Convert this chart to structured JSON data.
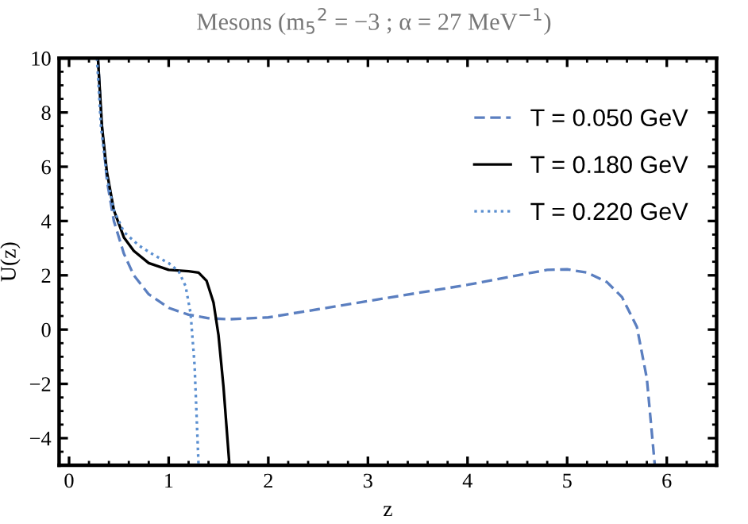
{
  "chart_data": {
    "type": "line",
    "title": "Mesons (m$_{5}$$^{2}$ = −3 ; α = 27 MeV$^{−1}$)",
    "xlabel": "z",
    "ylabel": "U(z)",
    "xlim": [
      -0.1,
      6.5
    ],
    "ylim": [
      -5,
      10
    ],
    "xticks": [
      0,
      1,
      2,
      3,
      4,
      5,
      6
    ],
    "yticks": [
      {
        "value": -4,
        "label": "−4"
      },
      {
        "value": -2,
        "label": "−2"
      },
      0,
      2,
      4,
      6,
      8,
      10
    ],
    "legend": "top right",
    "grid": false,
    "series": [
      {
        "name": "T = 0.050 GeV",
        "color": "#5b7fc0",
        "line_style": "dashed",
        "x": [
          0.29,
          0.33,
          0.38,
          0.45,
          0.55,
          0.65,
          0.8,
          1.0,
          1.2,
          1.4,
          1.6,
          2.0,
          2.5,
          3.0,
          3.5,
          4.0,
          4.5,
          4.8,
          5.0,
          5.2,
          5.4,
          5.55,
          5.7,
          5.8,
          5.88
        ],
        "values": [
          10,
          7.5,
          5.5,
          4.0,
          2.8,
          2.0,
          1.3,
          0.8,
          0.55,
          0.42,
          0.38,
          0.45,
          0.75,
          1.05,
          1.35,
          1.65,
          2.0,
          2.2,
          2.22,
          2.1,
          1.75,
          1.2,
          0.1,
          -1.8,
          -5
        ]
      },
      {
        "name": "T = 0.180 GeV",
        "color": "#000000",
        "line_style": "solid",
        "x": [
          0.29,
          0.33,
          0.38,
          0.45,
          0.55,
          0.65,
          0.8,
          1.0,
          1.2,
          1.3,
          1.38,
          1.45,
          1.5,
          1.55,
          1.61
        ],
        "values": [
          10,
          7.5,
          5.8,
          4.4,
          3.4,
          2.9,
          2.45,
          2.2,
          2.15,
          2.1,
          1.8,
          1.0,
          -0.2,
          -2.1,
          -5
        ]
      },
      {
        "name": "T = 0.220 GeV",
        "color": "#5b8fd0",
        "line_style": "dotted",
        "x": [
          0.28,
          0.32,
          0.38,
          0.45,
          0.55,
          0.7,
          0.85,
          1.0,
          1.1,
          1.17,
          1.22,
          1.26,
          1.3
        ],
        "values": [
          10,
          7.5,
          5.6,
          4.4,
          3.6,
          3.1,
          2.75,
          2.45,
          2.15,
          1.6,
          0.6,
          -1.3,
          -5
        ]
      }
    ]
  }
}
